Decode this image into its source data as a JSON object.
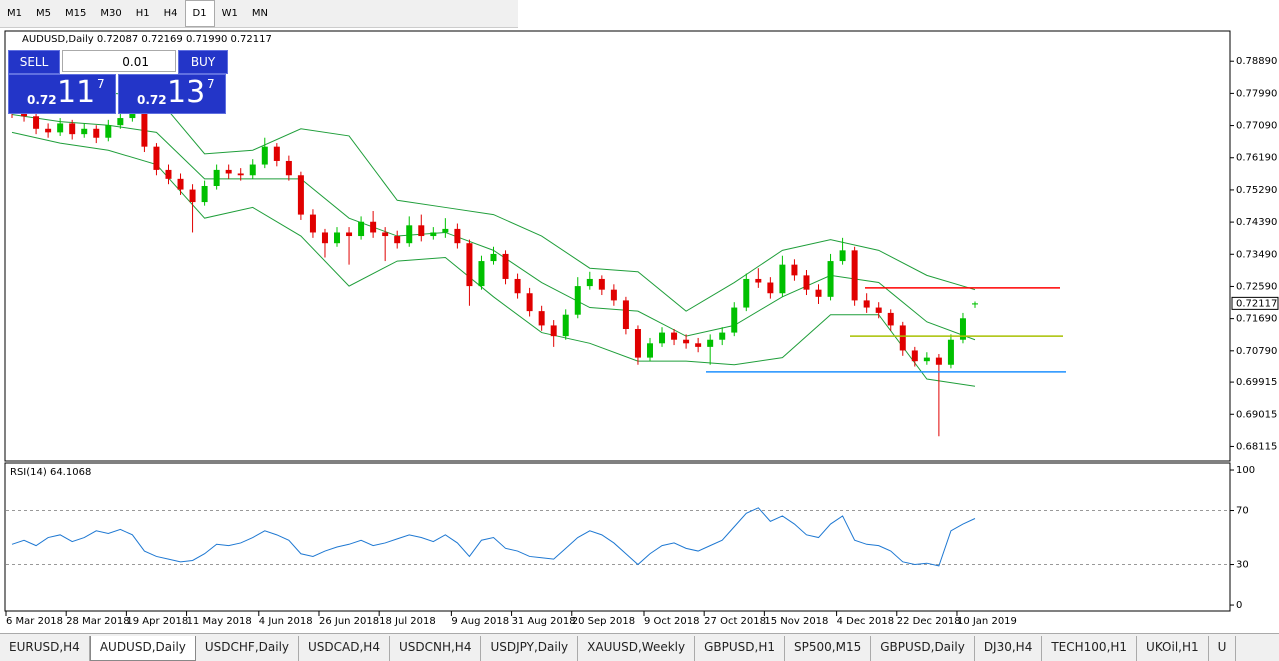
{
  "toolbar": {
    "timeframes": [
      "M1",
      "M5",
      "M15",
      "M30",
      "H1",
      "H4",
      "D1",
      "W1",
      "MN"
    ],
    "active": 6
  },
  "trade_panel": {
    "sell": "SELL",
    "lot": "0.01",
    "buy": "BUY",
    "sell_price": {
      "prefix": "0.72",
      "big": "11",
      "small": "7"
    },
    "buy_price": {
      "prefix": "0.72",
      "big": "13",
      "small": "7"
    }
  },
  "chart_data": {
    "type": "candlestick",
    "title": "AUDUSD,Daily  0.72087 0.72169 0.71990 0.72117",
    "up_color": "#00c000",
    "down_color": "#e00000",
    "band_color": "#1f9e3a",
    "ylim": [
      0.67708,
      0.79735
    ],
    "yticks": [
      {
        "value": 0.7889,
        "label": "0.78890"
      },
      {
        "value": 0.7799,
        "label": "0.77990"
      },
      {
        "value": 0.7709,
        "label": "0.77090"
      },
      {
        "value": 0.7619,
        "label": "0.76190"
      },
      {
        "value": 0.7529,
        "label": "0.75290"
      },
      {
        "value": 0.7439,
        "label": "0.74390"
      },
      {
        "value": 0.7349,
        "label": "0.73490"
      },
      {
        "value": 0.7259,
        "label": "0.72590"
      },
      {
        "value": 0.7169,
        "label": "0.71690"
      },
      {
        "value": 0.7079,
        "label": "0.70790"
      },
      {
        "value": 0.69915,
        "label": "0.69915"
      },
      {
        "value": 0.69015,
        "label": "0.69015"
      },
      {
        "value": 0.68115,
        "label": "0.68115"
      }
    ],
    "last_price": 0.72117,
    "xlim": [
      0,
      80
    ],
    "xticks": [
      {
        "value": 0,
        "label": "6 Mar 2018"
      },
      {
        "value": 5,
        "label": "28 Mar 2018"
      },
      {
        "value": 10,
        "label": "19 Apr 2018"
      },
      {
        "value": 15,
        "label": "11 May 2018"
      },
      {
        "value": 21,
        "label": "4 Jun 2018"
      },
      {
        "value": 26,
        "label": "26 Jun 2018"
      },
      {
        "value": 31,
        "label": "18 Jul 2018"
      },
      {
        "value": 37,
        "label": "9 Aug 2018"
      },
      {
        "value": 42,
        "label": "31 Aug 2018"
      },
      {
        "value": 47,
        "label": "20 Sep 2018"
      },
      {
        "value": 53,
        "label": "9 Oct 2018"
      },
      {
        "value": 58,
        "label": "27 Oct 2018"
      },
      {
        "value": 63,
        "label": "15 Nov 2018"
      },
      {
        "value": 69,
        "label": "4 Dec 2018"
      },
      {
        "value": 74,
        "label": "22 Dec 2018"
      },
      {
        "value": 79,
        "label": "10 Jan 2019"
      }
    ],
    "candles": [
      [
        0.7755,
        0.777,
        0.773,
        0.7745
      ],
      [
        0.7745,
        0.776,
        0.772,
        0.7735
      ],
      [
        0.7735,
        0.775,
        0.7685,
        0.77
      ],
      [
        0.77,
        0.7715,
        0.7675,
        0.769
      ],
      [
        0.769,
        0.773,
        0.768,
        0.7715
      ],
      [
        0.7715,
        0.7725,
        0.767,
        0.7685
      ],
      [
        0.7685,
        0.7715,
        0.7675,
        0.77
      ],
      [
        0.77,
        0.771,
        0.766,
        0.7675
      ],
      [
        0.7675,
        0.7725,
        0.7665,
        0.771
      ],
      [
        0.771,
        0.7745,
        0.77,
        0.773
      ],
      [
        0.773,
        0.7775,
        0.772,
        0.776
      ],
      [
        0.776,
        0.7765,
        0.7635,
        0.765
      ],
      [
        0.765,
        0.766,
        0.757,
        0.7585
      ],
      [
        0.7585,
        0.76,
        0.7545,
        0.756
      ],
      [
        0.756,
        0.7575,
        0.7515,
        0.753
      ],
      [
        0.753,
        0.7545,
        0.741,
        0.7495
      ],
      [
        0.7495,
        0.7555,
        0.7485,
        0.754
      ],
      [
        0.754,
        0.76,
        0.753,
        0.7585
      ],
      [
        0.7585,
        0.76,
        0.756,
        0.7575
      ],
      [
        0.7575,
        0.759,
        0.7555,
        0.757
      ],
      [
        0.757,
        0.7615,
        0.756,
        0.76
      ],
      [
        0.76,
        0.7675,
        0.759,
        0.765
      ],
      [
        0.765,
        0.766,
        0.7595,
        0.761
      ],
      [
        0.761,
        0.7625,
        0.7555,
        0.757
      ],
      [
        0.757,
        0.758,
        0.7445,
        0.746
      ],
      [
        0.746,
        0.7475,
        0.7395,
        0.741
      ],
      [
        0.741,
        0.742,
        0.734,
        0.738
      ],
      [
        0.738,
        0.7425,
        0.737,
        0.741
      ],
      [
        0.741,
        0.7425,
        0.732,
        0.74
      ],
      [
        0.74,
        0.7455,
        0.739,
        0.744
      ],
      [
        0.744,
        0.747,
        0.7395,
        0.741
      ],
      [
        0.741,
        0.7425,
        0.733,
        0.74
      ],
      [
        0.74,
        0.7415,
        0.7365,
        0.738
      ],
      [
        0.738,
        0.7455,
        0.737,
        0.743
      ],
      [
        0.743,
        0.746,
        0.7385,
        0.74
      ],
      [
        0.74,
        0.7425,
        0.739,
        0.741
      ],
      [
        0.741,
        0.745,
        0.7395,
        0.742
      ],
      [
        0.742,
        0.7435,
        0.7365,
        0.738
      ],
      [
        0.738,
        0.739,
        0.7205,
        0.726
      ],
      [
        0.726,
        0.7345,
        0.725,
        0.733
      ],
      [
        0.733,
        0.737,
        0.732,
        0.735
      ],
      [
        0.735,
        0.736,
        0.7265,
        0.728
      ],
      [
        0.728,
        0.7295,
        0.7225,
        0.724
      ],
      [
        0.724,
        0.7255,
        0.7175,
        0.719
      ],
      [
        0.719,
        0.7205,
        0.7135,
        0.715
      ],
      [
        0.715,
        0.7165,
        0.709,
        0.712
      ],
      [
        0.712,
        0.7195,
        0.711,
        0.718
      ],
      [
        0.718,
        0.7285,
        0.717,
        0.726
      ],
      [
        0.726,
        0.73,
        0.725,
        0.728
      ],
      [
        0.728,
        0.729,
        0.7235,
        0.725
      ],
      [
        0.725,
        0.7265,
        0.7205,
        0.722
      ],
      [
        0.722,
        0.723,
        0.7125,
        0.714
      ],
      [
        0.714,
        0.715,
        0.704,
        0.706
      ],
      [
        0.706,
        0.7115,
        0.705,
        0.71
      ],
      [
        0.71,
        0.7145,
        0.709,
        0.713
      ],
      [
        0.713,
        0.714,
        0.7095,
        0.711
      ],
      [
        0.711,
        0.7125,
        0.7085,
        0.71
      ],
      [
        0.71,
        0.7115,
        0.7075,
        0.709
      ],
      [
        0.709,
        0.7125,
        0.704,
        0.711
      ],
      [
        0.711,
        0.7145,
        0.7095,
        0.713
      ],
      [
        0.713,
        0.7215,
        0.712,
        0.72
      ],
      [
        0.72,
        0.7295,
        0.719,
        0.728
      ],
      [
        0.728,
        0.731,
        0.7255,
        0.727
      ],
      [
        0.727,
        0.7285,
        0.7225,
        0.724
      ],
      [
        0.724,
        0.7345,
        0.723,
        0.732
      ],
      [
        0.732,
        0.7335,
        0.7275,
        0.729
      ],
      [
        0.729,
        0.7305,
        0.7235,
        0.725
      ],
      [
        0.725,
        0.7265,
        0.721,
        0.723
      ],
      [
        0.723,
        0.735,
        0.722,
        0.733
      ],
      [
        0.733,
        0.7395,
        0.732,
        0.736
      ],
      [
        0.736,
        0.737,
        0.7205,
        0.722
      ],
      [
        0.722,
        0.724,
        0.7185,
        0.72
      ],
      [
        0.72,
        0.7215,
        0.717,
        0.7185
      ],
      [
        0.7185,
        0.7195,
        0.7135,
        0.715
      ],
      [
        0.715,
        0.716,
        0.7065,
        0.708
      ],
      [
        0.708,
        0.709,
        0.7035,
        0.705
      ],
      [
        0.705,
        0.7075,
        0.704,
        0.706
      ],
      [
        0.706,
        0.707,
        0.684,
        0.704
      ],
      [
        0.704,
        0.7125,
        0.703,
        0.711
      ],
      [
        0.711,
        0.7185,
        0.71,
        0.717
      ],
      [
        0.72087,
        0.72169,
        0.7199,
        0.72117
      ]
    ],
    "bollinger": {
      "x": [
        0,
        4,
        8,
        12,
        16,
        20,
        24,
        28,
        32,
        36,
        40,
        44,
        48,
        52,
        56,
        60,
        64,
        68,
        72,
        76,
        80
      ],
      "upper": [
        0.78,
        0.7795,
        0.78,
        0.779,
        0.763,
        0.764,
        0.77,
        0.768,
        0.75,
        0.748,
        0.746,
        0.74,
        0.731,
        0.73,
        0.719,
        0.727,
        0.736,
        0.739,
        0.736,
        0.729,
        0.725
      ],
      "middle": [
        0.774,
        0.772,
        0.771,
        0.769,
        0.756,
        0.756,
        0.756,
        0.745,
        0.74,
        0.741,
        0.736,
        0.727,
        0.72,
        0.719,
        0.712,
        0.715,
        0.723,
        0.729,
        0.727,
        0.716,
        0.711
      ],
      "lower": [
        0.769,
        0.766,
        0.764,
        0.76,
        0.745,
        0.748,
        0.74,
        0.726,
        0.733,
        0.734,
        0.723,
        0.713,
        0.71,
        0.705,
        0.705,
        0.704,
        0.706,
        0.718,
        0.718,
        0.7,
        0.698
      ]
    },
    "levels": [
      {
        "value": 0.7255,
        "color": "#ff0000"
      },
      {
        "value": 0.712,
        "color": "#a8c000"
      },
      {
        "value": 0.702,
        "color": "#1e90ff"
      }
    ],
    "rsi": {
      "label": "RSI(14) 64.1068",
      "color": "#1e78d2",
      "ylim": [
        -4.4,
        105.2
      ],
      "yticks": [
        100,
        70,
        30,
        0
      ],
      "dashed": [
        70,
        30
      ],
      "values": [
        45,
        48,
        44,
        50,
        52,
        47,
        50,
        55,
        53,
        56,
        52,
        40,
        36,
        34,
        32,
        33,
        38,
        45,
        44,
        46,
        50,
        55,
        52,
        48,
        38,
        36,
        40,
        43,
        45,
        48,
        44,
        46,
        49,
        52,
        50,
        47,
        52,
        46,
        36,
        48,
        50,
        42,
        40,
        36,
        35,
        34,
        42,
        50,
        55,
        52,
        46,
        38,
        30,
        38,
        44,
        46,
        42,
        40,
        44,
        48,
        58,
        68,
        72,
        62,
        66,
        60,
        52,
        50,
        60,
        66,
        48,
        45,
        44,
        40,
        32,
        30,
        31,
        29,
        55,
        60,
        64.1068
      ]
    }
  },
  "tabs": {
    "items": [
      "EURUSD,H4",
      "AUDUSD,Daily",
      "USDCHF,Daily",
      "USDCAD,H4",
      "USDCNH,H4",
      "USDJPY,Daily",
      "XAUUSD,Weekly",
      "GBPUSD,H1",
      "SP500,M15",
      "GBPUSD,Daily",
      "DJ30,H4",
      "TECH100,H1",
      "UKOil,H1",
      "U"
    ],
    "active": 1
  }
}
